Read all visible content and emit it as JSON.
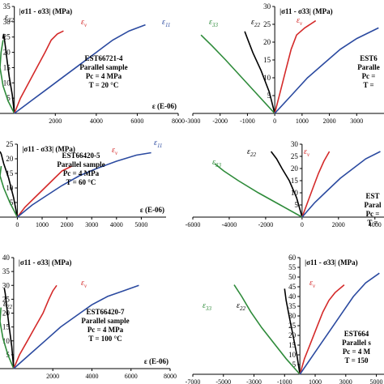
{
  "chart_data": [
    {
      "type": "line",
      "panel": "top-left",
      "ylabel": "|σ11 - σ33| (MPa)",
      "xlabel": "ε (E-06)",
      "xlim": [
        -700,
        8000
      ],
      "ylim": [
        0,
        35
      ],
      "xticks": [
        "2000",
        "4000",
        "6000",
        "8000"
      ],
      "yticks": [
        "5",
        "10",
        "15",
        "20",
        "25",
        "30",
        "35"
      ],
      "annotations": [
        "EST66721-4",
        "Parallel sample",
        "Pc = 4 MPa",
        "T = 20 °C"
      ],
      "series": [
        {
          "name": "ε22",
          "color": "#000000",
          "points": [
            [
              0,
              0
            ],
            [
              -100,
              6
            ],
            [
              -250,
              12
            ],
            [
              -350,
              17
            ],
            [
              -420,
              21
            ],
            [
              -480,
              24
            ],
            [
              -520,
              26
            ],
            [
              -560,
              24.5
            ]
          ]
        },
        {
          "name": "ε33",
          "color": "#2e8b3a",
          "points": [
            [
              0,
              0
            ],
            [
              -300,
              4
            ],
            [
              -550,
              9
            ],
            [
              -700,
              15
            ],
            [
              -650,
              20
            ],
            [
              -550,
              24
            ]
          ]
        },
        {
          "name": "εv",
          "color": "#d42a2a",
          "points": [
            [
              0,
              0
            ],
            [
              300,
              5
            ],
            [
              700,
              10
            ],
            [
              1100,
              15
            ],
            [
              1500,
              20
            ],
            [
              1800,
              24
            ],
            [
              2100,
              26
            ],
            [
              2400,
              27
            ]
          ]
        },
        {
          "name": "ε11",
          "color": "#2b4aa0",
          "points": [
            [
              0,
              0
            ],
            [
              800,
              4
            ],
            [
              1600,
              8
            ],
            [
              2400,
              12
            ],
            [
              3200,
              16
            ],
            [
              4000,
              20
            ],
            [
              4800,
              24
            ],
            [
              5600,
              27
            ],
            [
              6400,
              29
            ]
          ]
        }
      ]
    },
    {
      "type": "line",
      "panel": "top-right",
      "ylabel": "|σ11 - σ33| (MPa)",
      "xlim": [
        -3000,
        4000
      ],
      "ylim": [
        0,
        30
      ],
      "xticks": [
        "-3000",
        "-2000",
        "-1000",
        "0",
        "1000",
        "2000",
        "3000"
      ],
      "yticks": [
        "5",
        "10",
        "15",
        "20",
        "25",
        "30"
      ],
      "annotations": [
        "EST6",
        "Paralle",
        "Pc =",
        "T ="
      ],
      "series": [
        {
          "name": "ε22",
          "color": "#000000",
          "points": [
            [
              0,
              0
            ],
            [
              -200,
              6
            ],
            [
              -500,
              12
            ],
            [
              -800,
              17
            ],
            [
              -1000,
              21
            ],
            [
              -1100,
              23
            ]
          ]
        },
        {
          "name": "ε33",
          "color": "#2e8b3a",
          "points": [
            [
              0,
              0
            ],
            [
              -600,
              5
            ],
            [
              -1200,
              10
            ],
            [
              -1800,
              15
            ],
            [
              -2300,
              19
            ],
            [
              -2700,
              22
            ]
          ]
        },
        {
          "name": "εv",
          "color": "#d42a2a",
          "points": [
            [
              0,
              0
            ],
            [
              200,
              6
            ],
            [
              400,
              12
            ],
            [
              600,
              18
            ],
            [
              800,
              22
            ],
            [
              1100,
              24
            ],
            [
              1500,
              26
            ]
          ]
        },
        {
          "name": "ε11",
          "color": "#2b4aa0",
          "points": [
            [
              0,
              0
            ],
            [
              600,
              5
            ],
            [
              1200,
              10
            ],
            [
              1800,
              14
            ],
            [
              2400,
              18
            ],
            [
              3000,
              21
            ],
            [
              3800,
              24
            ]
          ]
        }
      ]
    },
    {
      "type": "line",
      "panel": "middle-left",
      "ylabel": "|σ11 - σ33| (MPa)",
      "xlabel": "ε (E-06)",
      "xlim": [
        -700,
        6000
      ],
      "ylim": [
        0,
        30
      ],
      "xticks": [
        "0",
        "1000",
        "2000",
        "3000",
        "4000",
        "5000"
      ],
      "yticks": [
        "5",
        "10",
        "15",
        "20",
        "25"
      ],
      "annotations": [
        "EST66420-5",
        "Parallel sample",
        "Pc = 4 MPa",
        "T = 60 °C"
      ],
      "series": [
        {
          "name": "ε22",
          "color": "#000000",
          "points": [
            [
              0,
              0
            ],
            [
              -150,
              8
            ],
            [
              -350,
              16
            ],
            [
              -550,
              22
            ],
            [
              -650,
              26
            ],
            [
              -700,
              27
            ]
          ]
        },
        {
          "name": "ε33",
          "color": "#2e8b3a",
          "points": [
            [
              0,
              0
            ],
            [
              -300,
              6
            ],
            [
              -550,
              12
            ],
            [
              -700,
              17
            ],
            [
              -650,
              21
            ]
          ]
        },
        {
          "name": "εv",
          "color": "#d42a2a",
          "points": [
            [
              0,
              0
            ],
            [
              300,
              4
            ],
            [
              700,
              8
            ],
            [
              1100,
              12
            ],
            [
              1500,
              16
            ],
            [
              1800,
              19
            ],
            [
              2200,
              21
            ]
          ]
        },
        {
          "name": "ε11",
          "color": "#2b4aa0",
          "points": [
            [
              0,
              0
            ],
            [
              600,
              5
            ],
            [
              1200,
              9
            ],
            [
              1800,
              13
            ],
            [
              2500,
              17
            ],
            [
              3200,
              20
            ],
            [
              4000,
              23
            ],
            [
              4800,
              25.5
            ],
            [
              5400,
              26.5
            ]
          ]
        }
      ]
    },
    {
      "type": "line",
      "panel": "middle-right",
      "xlim": [
        -6000,
        4500
      ],
      "ylim": [
        0,
        30
      ],
      "xticks": [
        "-6000",
        "-4000",
        "-2000",
        "0",
        "2000",
        "4000"
      ],
      "yticks": [
        "5",
        "10",
        "15",
        "20",
        "25",
        "30"
      ],
      "annotations": [
        "EST",
        "Paral",
        "Pc =",
        "T ="
      ],
      "series": [
        {
          "name": "ε22",
          "color": "#000000",
          "points": [
            [
              0,
              0
            ],
            [
              -300,
              8
            ],
            [
              -700,
              15
            ],
            [
              -1100,
              20
            ],
            [
              -1400,
              24
            ],
            [
              -1700,
              27
            ]
          ]
        },
        {
          "name": "ε33",
          "color": "#2e8b3a",
          "points": [
            [
              0,
              0
            ],
            [
              -1200,
              5
            ],
            [
              -2400,
              10
            ],
            [
              -3500,
              15
            ],
            [
              -4300,
              19
            ],
            [
              -4800,
              22
            ]
          ]
        },
        {
          "name": "εv",
          "color": "#d42a2a",
          "points": [
            [
              0,
              0
            ],
            [
              300,
              6
            ],
            [
              600,
              12
            ],
            [
              900,
              18
            ],
            [
              1200,
              23
            ],
            [
              1500,
              27
            ]
          ]
        },
        {
          "name": "ε11",
          "color": "#2b4aa0",
          "points": [
            [
              0,
              0
            ],
            [
              700,
              6
            ],
            [
              1400,
              11
            ],
            [
              2100,
              16
            ],
            [
              2800,
              20
            ],
            [
              3500,
              24
            ],
            [
              4300,
              27
            ]
          ]
        }
      ]
    },
    {
      "type": "line",
      "panel": "bottom-left",
      "ylabel": "|σ11 - σ33| (MPa)",
      "xlabel": "ε (E-06)",
      "xlim": [
        -700,
        8000
      ],
      "ylim": [
        0,
        40
      ],
      "xticks": [
        "2000",
        "4000",
        "6000",
        "8000"
      ],
      "yticks": [
        "5",
        "10",
        "15",
        "20",
        "25",
        "30",
        "35",
        "40"
      ],
      "annotations": [
        "EST66420-7",
        "Parallel sample",
        "Pc = 4 MPa",
        "T = 100 °C"
      ],
      "series": [
        {
          "name": "ε22",
          "color": "#000000",
          "points": [
            [
              0,
              0
            ],
            [
              -100,
              8
            ],
            [
              -250,
              16
            ],
            [
              -350,
              22
            ],
            [
              -430,
              27
            ],
            [
              -480,
              29
            ]
          ]
        },
        {
          "name": "ε33",
          "color": "#2e8b3a",
          "points": [
            [
              0,
              0
            ],
            [
              -300,
              5
            ],
            [
              -550,
              11
            ],
            [
              -700,
              17
            ],
            [
              -650,
              22
            ]
          ]
        },
        {
          "name": "εv",
          "color": "#d42a2a",
          "points": [
            [
              0,
              0
            ],
            [
              300,
              5
            ],
            [
              700,
              10
            ],
            [
              1100,
              15
            ],
            [
              1500,
              20
            ],
            [
              1800,
              25
            ],
            [
              2000,
              28
            ],
            [
              2200,
              30
            ]
          ]
        },
        {
          "name": "ε11",
          "color": "#2b4aa0",
          "points": [
            [
              0,
              0
            ],
            [
              800,
              5
            ],
            [
              1600,
              10
            ],
            [
              2400,
              15
            ],
            [
              3200,
              19
            ],
            [
              4000,
              23
            ],
            [
              4800,
              26
            ],
            [
              5600,
              28
            ],
            [
              6400,
              30
            ]
          ]
        }
      ]
    },
    {
      "type": "line",
      "panel": "bottom-right",
      "ylabel": "|σ11 - σ33| (MPa)",
      "xlim": [
        -7000,
        5500
      ],
      "ylim": [
        0,
        60
      ],
      "xticks": [
        "-7000",
        "-5000",
        "-3000",
        "-1000",
        "1000",
        "3000",
        "5000"
      ],
      "yticks": [
        "5",
        "10",
        "15",
        "20",
        "25",
        "30",
        "35",
        "40",
        "45",
        "50",
        "55",
        "60"
      ],
      "annotations": [
        "EST664",
        "Parallel s",
        "Pc = 4 M",
        "T = 150"
      ],
      "series": [
        {
          "name": "ε22",
          "color": "#000000",
          "points": [
            [
              0,
              0
            ],
            [
              -200,
              10
            ],
            [
              -450,
              20
            ],
            [
              -700,
              30
            ],
            [
              -900,
              38
            ],
            [
              -1000,
              44
            ]
          ]
        },
        {
          "name": "ε33",
          "color": "#2e8b3a",
          "points": [
            [
              0,
              0
            ],
            [
              -900,
              8
            ],
            [
              -1700,
              16
            ],
            [
              -2500,
              24
            ],
            [
              -3200,
              32
            ],
            [
              -3800,
              40
            ],
            [
              -4300,
              46
            ]
          ]
        },
        {
          "name": "εv",
          "color": "#d42a2a",
          "points": [
            [
              0,
              0
            ],
            [
              300,
              8
            ],
            [
              700,
              16
            ],
            [
              1100,
              24
            ],
            [
              1500,
              32
            ],
            [
              1900,
              38
            ],
            [
              2300,
              42
            ],
            [
              2900,
              46
            ]
          ]
        },
        {
          "name": "ε11",
          "color": "#2b4aa0",
          "points": [
            [
              0,
              0
            ],
            [
              700,
              8
            ],
            [
              1400,
              16
            ],
            [
              2100,
              24
            ],
            [
              2800,
              32
            ],
            [
              3500,
              40
            ],
            [
              4300,
              47
            ],
            [
              5200,
              52
            ]
          ]
        }
      ]
    }
  ]
}
